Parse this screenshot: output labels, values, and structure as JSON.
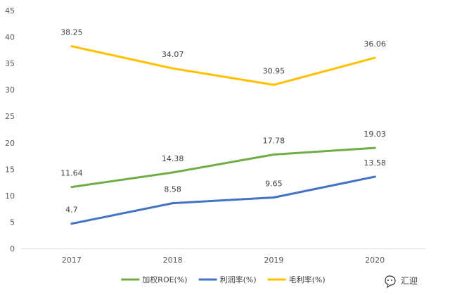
{
  "chart_data": {
    "type": "line",
    "categories": [
      "2017",
      "2018",
      "2019",
      "2020"
    ],
    "series": [
      {
        "name": "加权ROE(%)",
        "values": [
          11.64,
          14.38,
          17.78,
          19.03
        ],
        "color": "#70AD47"
      },
      {
        "name": "利润率(%)",
        "values": [
          4.7,
          8.58,
          9.65,
          13.58
        ],
        "color": "#4472C4"
      },
      {
        "name": "毛利率(%)",
        "values": [
          38.25,
          34.07,
          30.95,
          36.06
        ],
        "color": "#FFC000"
      }
    ],
    "ylim": [
      0,
      45
    ],
    "yticks": [
      0,
      5,
      10,
      15,
      20,
      25,
      30,
      35,
      40,
      45
    ],
    "data_labels": true,
    "grid": false,
    "legend_position": "bottom"
  },
  "watermark": {
    "icon": "chat-bubble-icon",
    "text": "汇迎"
  }
}
